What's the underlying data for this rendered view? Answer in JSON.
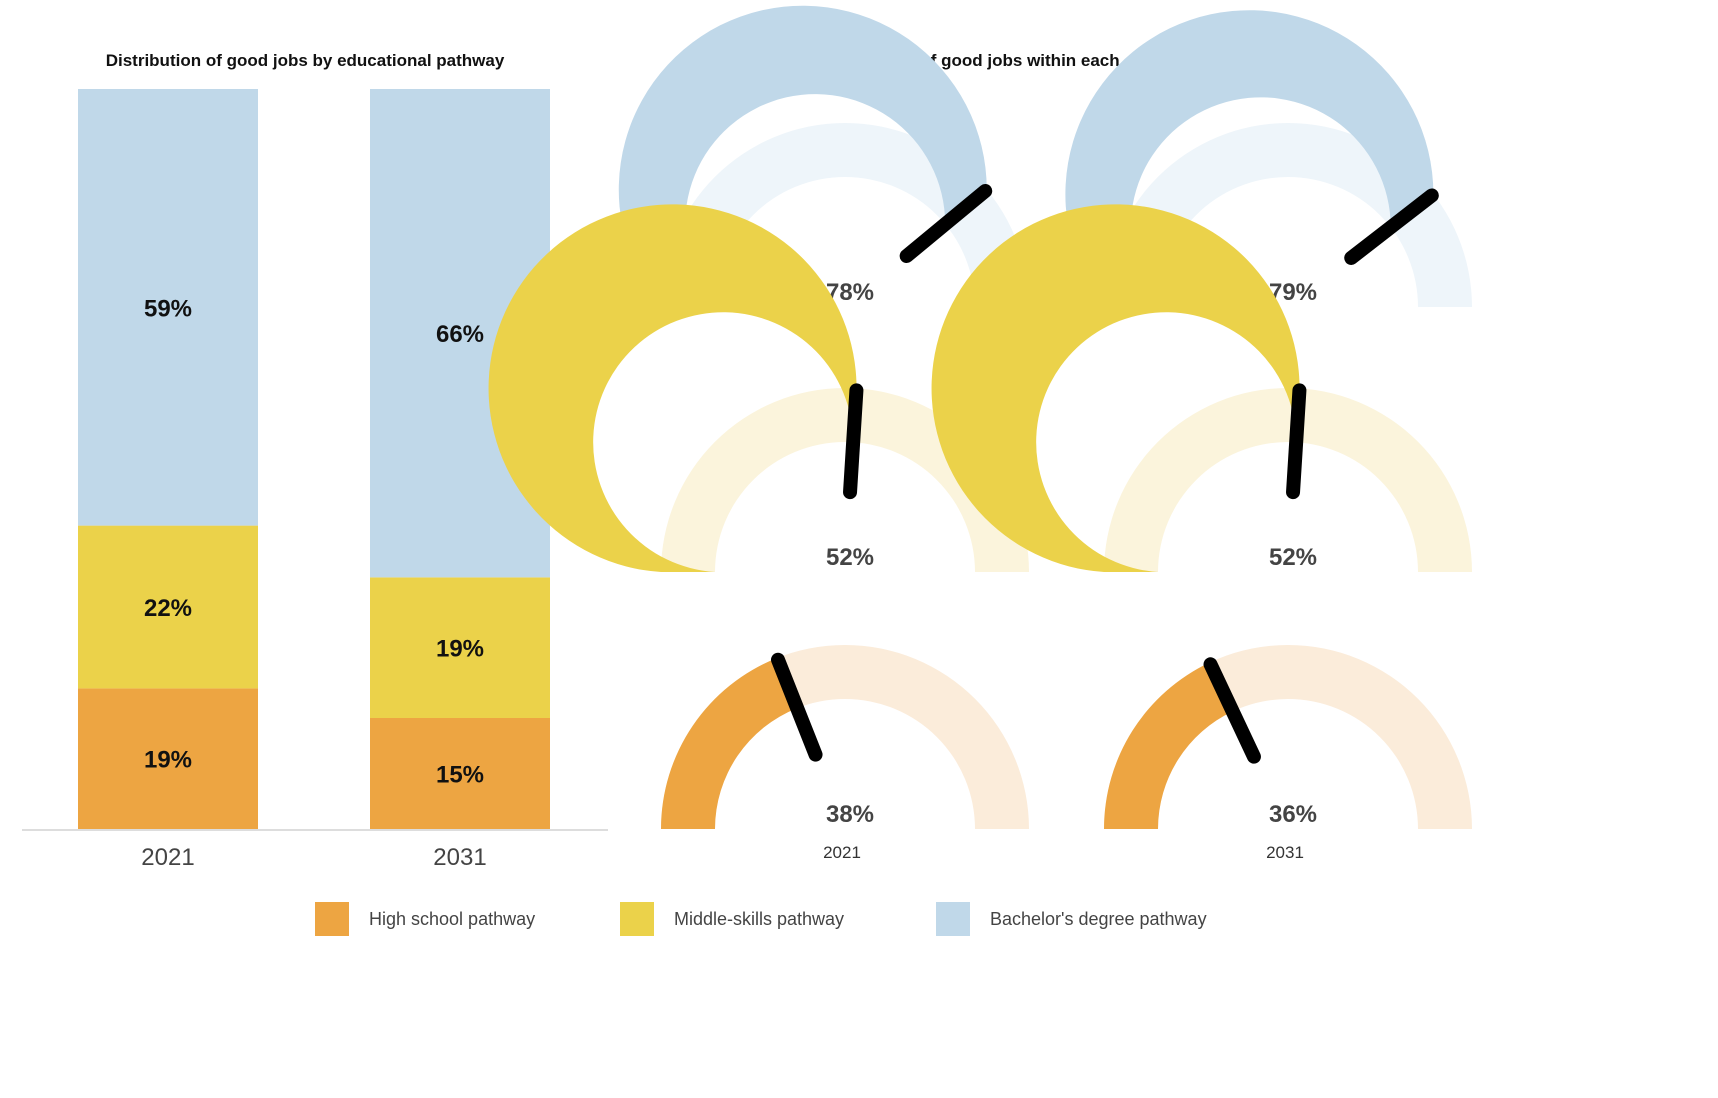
{
  "colors": {
    "high_school": "#EDA542",
    "middle_skills": "#EBD24A",
    "bachelors": "#C0D8E9",
    "high_school_light": "#FBECDA",
    "middle_skills_light": "#FBF4DC",
    "bachelors_light": "#EEF5FA",
    "needle": "#000000"
  },
  "chart_data": [
    {
      "type": "bar",
      "stacked": true,
      "title": "Distribution of good jobs by educational pathway",
      "categories": [
        "2021",
        "2031"
      ],
      "series": [
        {
          "name": "High school pathway",
          "key": "high_school",
          "values": [
            19,
            15
          ],
          "labels": [
            "19%",
            "15%"
          ]
        },
        {
          "name": "Middle-skills pathway",
          "key": "middle_skills",
          "values": [
            22,
            19
          ],
          "labels": [
            "22%",
            "19%"
          ]
        },
        {
          "name": "Bachelor's degree pathway",
          "key": "bachelors",
          "values": [
            59,
            66
          ],
          "labels": [
            "59%",
            "66%"
          ]
        }
      ],
      "ylim": [
        0,
        100
      ]
    },
    {
      "type": "gauge",
      "title": "Share of good jobs within each educational pathway",
      "columns": [
        "2021",
        "2031"
      ],
      "rows": [
        {
          "series": "Bachelor's degree pathway",
          "key": "bachelors",
          "values": [
            78,
            79
          ],
          "labels": [
            "78%",
            "79%"
          ]
        },
        {
          "series": "Middle-skills pathway",
          "key": "middle_skills",
          "values": [
            52,
            52
          ],
          "labels": [
            "52%",
            "52%"
          ]
        },
        {
          "series": "High school pathway",
          "key": "high_school",
          "values": [
            38,
            36
          ],
          "labels": [
            "38%",
            "36%"
          ]
        }
      ],
      "range": [
        0,
        100
      ]
    }
  ],
  "legend": [
    {
      "label": "High school pathway",
      "key": "high_school"
    },
    {
      "label": "Middle-skills pathway",
      "key": "middle_skills"
    },
    {
      "label": "Bachelor's degree pathway",
      "key": "bachelors"
    }
  ]
}
